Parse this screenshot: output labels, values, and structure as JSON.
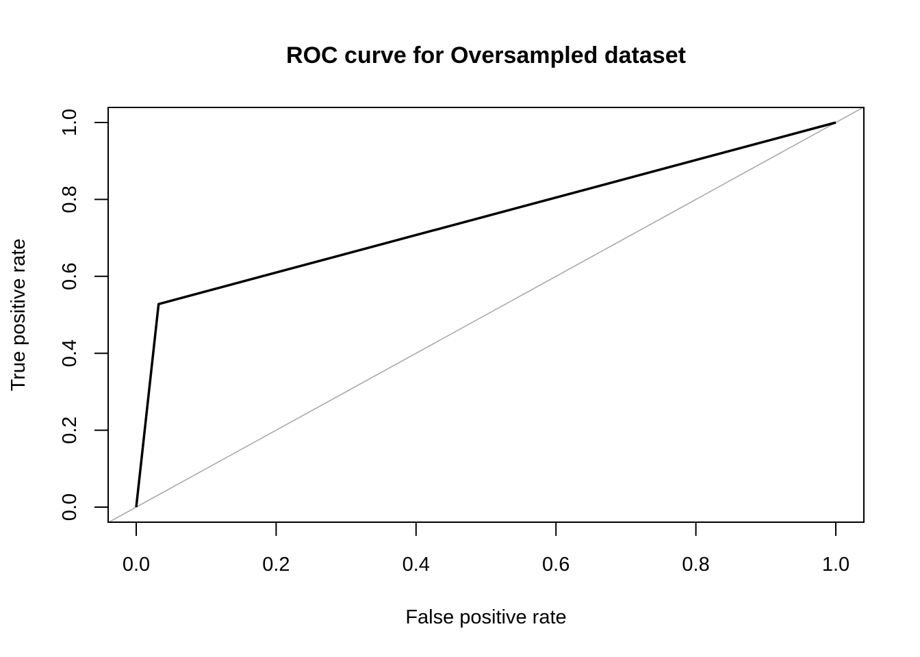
{
  "chart_data": {
    "type": "line",
    "title": "ROC curve for Oversampled dataset",
    "xlabel": "False positive rate",
    "ylabel": "True positive rate",
    "xlim": [
      0,
      1
    ],
    "ylim": [
      0,
      1
    ],
    "xticks": [
      0.0,
      0.2,
      0.4,
      0.6,
      0.8,
      1.0
    ],
    "xtick_labels": [
      "0.0",
      "0.2",
      "0.4",
      "0.6",
      "0.8",
      "1.0"
    ],
    "yticks": [
      0.0,
      0.2,
      0.4,
      0.6,
      0.8,
      1.0
    ],
    "ytick_labels": [
      "0.0",
      "0.2",
      "0.4",
      "0.6",
      "0.8",
      "1.0"
    ],
    "grid": false,
    "series": [
      {
        "x": [
          0.0,
          0.032,
          1.0
        ],
        "y": [
          0.0,
          0.528,
          1.0
        ],
        "color": "#000000"
      }
    ],
    "reference_line": {
      "x": [
        0,
        1
      ],
      "y": [
        0,
        1
      ],
      "color": "#a9a9a9"
    }
  }
}
